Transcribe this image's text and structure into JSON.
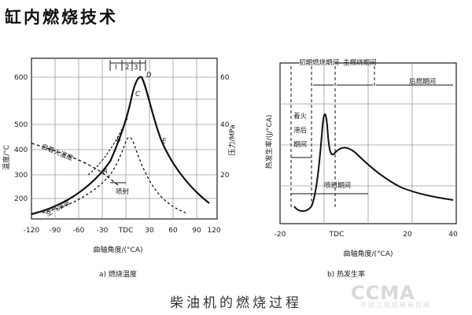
{
  "title": "缸内燃烧技术",
  "caption": "柴油机的燃烧过程",
  "watermark": {
    "en": "CCMA",
    "cn": "中国工程机械商贸网"
  },
  "left_chart": {
    "caption": "a) 燃烧温度",
    "x_label": "曲轴角度/(°CA)",
    "y_left_label": "温度/°C",
    "y_right_label": "压力/MPa",
    "x_ticks": [
      "-120",
      "-90",
      "-60",
      "-30",
      "TDC",
      "30",
      "60",
      "90",
      "120"
    ],
    "y_left_ticks": [
      "200",
      "300",
      "400",
      "500",
      "600"
    ],
    "y_right_ticks": [
      "20",
      "40",
      "60"
    ],
    "stage_labels": [
      "I",
      "2",
      "3"
    ],
    "points": [
      "A",
      "B",
      "C",
      "D",
      "E"
    ],
    "annotations": {
      "autoignition": "自着火温度",
      "air_temp": "空气温度",
      "injection": "喷射"
    }
  },
  "right_chart": {
    "caption": "b) 热发生率",
    "x_label": "曲轴角度/(°CA)",
    "y_label": "热发生率/(J/°CA)",
    "x_ticks": [
      "-20",
      "TDC",
      "20",
      "40"
    ],
    "phases": [
      "初期燃烧期间",
      "主燃烧期间",
      "后燃期间"
    ],
    "ignition_delay": [
      "着火",
      "滞后",
      "期间"
    ],
    "injection": "喷射期间"
  }
}
